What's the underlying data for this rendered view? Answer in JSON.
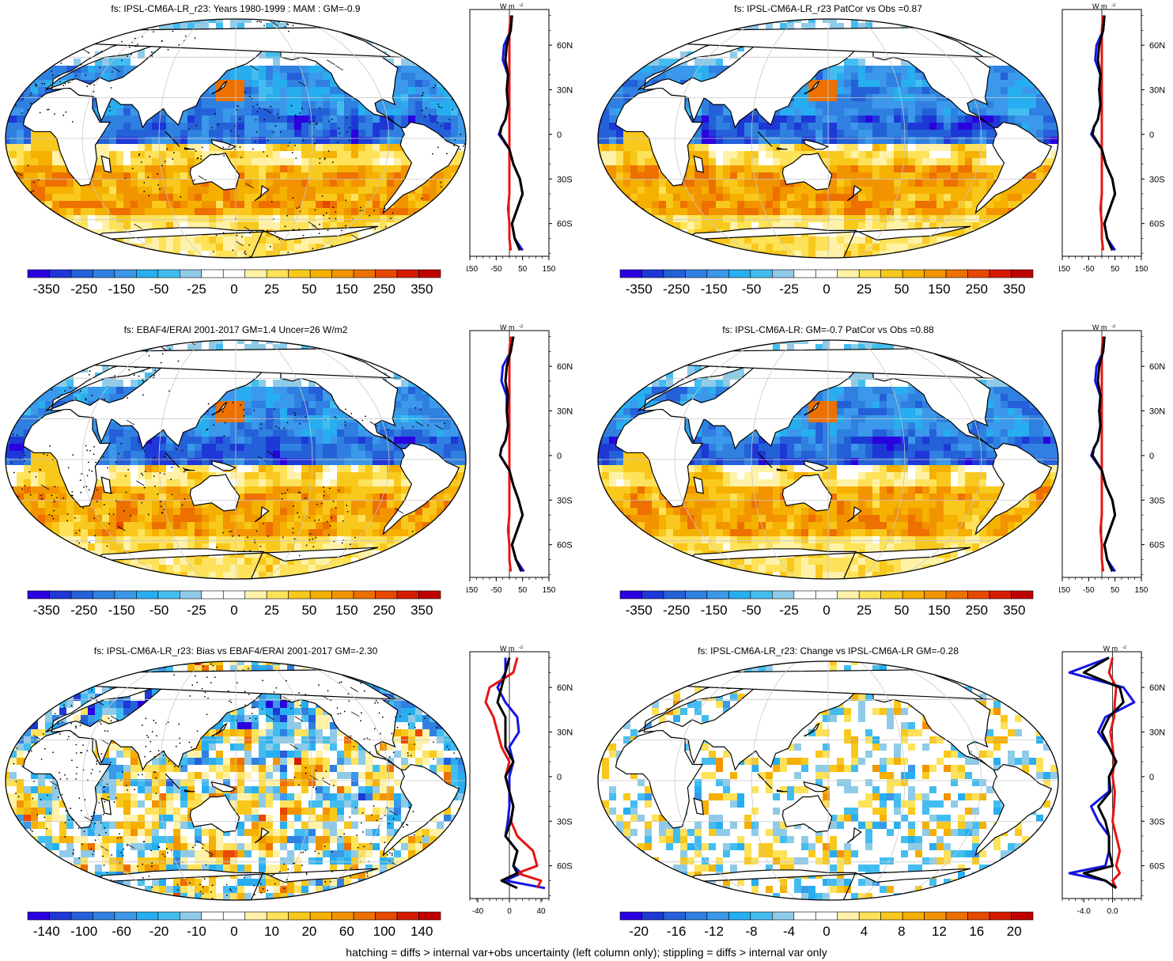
{
  "footer": "hatching = diffs > internal var+obs uncertainty (left column only); stippling = diffs > internal var only",
  "colors": {
    "scale": [
      "#2b00e0",
      "#1d38d6",
      "#2460d8",
      "#2f80e0",
      "#3b98ea",
      "#27aef0",
      "#43bdf0",
      "#8fcbe8",
      "#ffffff",
      "#ffffff",
      "#fff2a8",
      "#fde25a",
      "#f9c81c",
      "#f5b000",
      "#f29400",
      "#ed7000",
      "#e84800",
      "#d61c00",
      "#c00000"
    ],
    "land": "#ffffff",
    "outline": "#000000",
    "line_blue": "#1414e6",
    "line_red": "#e61414",
    "line_black": "#000000"
  },
  "profile_axis": {
    "units": "W m",
    "units_sup": "-2",
    "lat_ticks": [
      "60N",
      "30N",
      "0",
      "30S",
      "60S"
    ]
  },
  "panels": [
    {
      "title": "fs: IPSL-CM6A-LR_r23: Years 1980-1999 : MAM : GM=-0.9",
      "colorbar_labels": [
        "-350",
        "-250",
        "-150",
        "-50",
        "-25",
        "0",
        "25",
        "50",
        "150",
        "250",
        "350"
      ],
      "pattern": "clim",
      "stipple": true,
      "hatch": true,
      "profile_x_ticks": [
        "-150",
        "-50",
        "50",
        "150"
      ],
      "chart_data": {
        "type": "line",
        "x_range": [
          -150,
          150
        ],
        "lat": [
          80,
          70,
          60,
          50,
          40,
          30,
          20,
          10,
          5,
          0,
          -10,
          -20,
          -30,
          -40,
          -50,
          -60,
          -70,
          -78
        ],
        "series": [
          {
            "values": [
              10,
              5,
              -20,
              -25,
              -5,
              -10,
              -5,
              -15,
              -30,
              -40,
              0,
              15,
              40,
              50,
              30,
              10,
              20,
              50
            ]
          },
          {
            "values": [
              5,
              0,
              0,
              0,
              0,
              0,
              0,
              0,
              0,
              0,
              0,
              0,
              0,
              0,
              -5,
              0,
              0,
              5
            ]
          },
          {
            "values": [
              10,
              5,
              -10,
              -15,
              -5,
              -10,
              -5,
              -15,
              -30,
              -35,
              0,
              15,
              40,
              50,
              30,
              10,
              20,
              40
            ]
          }
        ]
      }
    },
    {
      "title": "fs: IPSL-CM6A-LR_r23 PatCor vs Obs =0.87",
      "colorbar_labels": [
        "-350",
        "-250",
        "-150",
        "-50",
        "-25",
        "0",
        "25",
        "50",
        "150",
        "250",
        "350"
      ],
      "pattern": "clim",
      "stipple": false,
      "hatch": false,
      "profile_x_ticks": [
        "-150",
        "-50",
        "50",
        "150"
      ],
      "chart_data": {
        "type": "line",
        "x_range": [
          -150,
          150
        ],
        "lat": [
          80,
          70,
          60,
          50,
          40,
          30,
          20,
          10,
          5,
          0,
          -10,
          -20,
          -30,
          -40,
          -50,
          -60,
          -70,
          -78
        ],
        "series": [
          {
            "values": [
              10,
              5,
              -20,
              -25,
              -5,
              -10,
              -5,
              -15,
              -30,
              -40,
              0,
              15,
              40,
              50,
              30,
              10,
              20,
              50
            ]
          },
          {
            "values": [
              5,
              0,
              0,
              0,
              0,
              0,
              0,
              0,
              0,
              0,
              0,
              0,
              0,
              0,
              -5,
              0,
              0,
              5
            ]
          },
          {
            "values": [
              10,
              5,
              -10,
              -15,
              -5,
              -10,
              -5,
              -15,
              -30,
              -35,
              0,
              15,
              40,
              50,
              30,
              10,
              20,
              40
            ]
          }
        ]
      }
    },
    {
      "title": "fs: EBAF4/ERAI 2001-2017 GM=1.4 Uncer=26 W/m2",
      "colorbar_labels": [
        "-350",
        "-250",
        "-150",
        "-50",
        "-25",
        "0",
        "25",
        "50",
        "150",
        "250",
        "350"
      ],
      "pattern": "clim",
      "stipple": true,
      "hatch": true,
      "profile_x_ticks": [
        "-150",
        "-50",
        "50",
        "150"
      ],
      "chart_data": {
        "type": "line",
        "x_range": [
          -150,
          150
        ],
        "lat": [
          80,
          70,
          60,
          50,
          40,
          30,
          20,
          10,
          5,
          0,
          -10,
          -20,
          -30,
          -40,
          -50,
          -60,
          -70,
          -78
        ],
        "series": [
          {
            "values": [
              15,
              5,
              -25,
              -30,
              -10,
              -10,
              -5,
              -15,
              -30,
              -35,
              0,
              15,
              35,
              50,
              30,
              10,
              25,
              55
            ]
          },
          {
            "values": [
              5,
              0,
              0,
              0,
              0,
              0,
              0,
              0,
              0,
              0,
              0,
              0,
              0,
              0,
              -5,
              0,
              0,
              5
            ]
          },
          {
            "values": [
              15,
              5,
              -10,
              -15,
              -5,
              -10,
              -5,
              -15,
              -30,
              -35,
              0,
              15,
              35,
              50,
              30,
              10,
              25,
              45
            ]
          }
        ]
      }
    },
    {
      "title": "fs: IPSL-CM6A-LR: GM=-0.7 PatCor vs Obs =0.88",
      "colorbar_labels": [
        "-350",
        "-250",
        "-150",
        "-50",
        "-25",
        "0",
        "25",
        "50",
        "150",
        "250",
        "350"
      ],
      "pattern": "clim",
      "stipple": false,
      "hatch": false,
      "profile_x_ticks": [
        "-150",
        "-50",
        "50",
        "150"
      ],
      "chart_data": {
        "type": "line",
        "x_range": [
          -150,
          150
        ],
        "lat": [
          80,
          70,
          60,
          50,
          40,
          30,
          20,
          10,
          5,
          0,
          -10,
          -20,
          -30,
          -40,
          -50,
          -60,
          -70,
          -78
        ],
        "series": [
          {
            "values": [
              10,
              5,
              -20,
              -25,
              -5,
              -10,
              -5,
              -15,
              -30,
              -40,
              0,
              15,
              40,
              50,
              30,
              10,
              20,
              50
            ]
          },
          {
            "values": [
              5,
              0,
              0,
              0,
              0,
              0,
              0,
              0,
              0,
              0,
              0,
              0,
              0,
              0,
              -5,
              0,
              0,
              5
            ]
          },
          {
            "values": [
              10,
              5,
              -10,
              -15,
              -5,
              -10,
              -5,
              -15,
              -30,
              -35,
              0,
              15,
              40,
              50,
              30,
              10,
              20,
              40
            ]
          }
        ]
      }
    },
    {
      "title": "fs: IPSL-CM6A-LR_r23: Bias vs EBAF4/ERAI 2001-2017 GM=-2.30",
      "colorbar_labels": [
        "-140",
        "-100",
        "-60",
        "-20",
        "-10",
        "0",
        "10",
        "20",
        "60",
        "100",
        "140"
      ],
      "pattern": "bias",
      "stipple": true,
      "hatch": true,
      "profile_x_ticks": [
        "-40",
        "0",
        "40"
      ],
      "chart_data": {
        "type": "line",
        "x_range": [
          -50,
          50
        ],
        "lat": [
          80,
          70,
          60,
          50,
          40,
          30,
          20,
          10,
          0,
          -10,
          -20,
          -30,
          -40,
          -50,
          -60,
          -65,
          -70,
          -75
        ],
        "series": [
          {
            "values": [
              -5,
              -5,
              -15,
              -5,
              10,
              12,
              0,
              5,
              0,
              0,
              0,
              -2,
              -5,
              10,
              5,
              15,
              -5,
              45
            ]
          },
          {
            "values": [
              10,
              5,
              -25,
              -30,
              -20,
              -15,
              -10,
              0,
              -5,
              0,
              5,
              2,
              10,
              30,
              35,
              10,
              40,
              35
            ]
          },
          {
            "values": [
              0,
              -5,
              -10,
              -15,
              -5,
              -5,
              -5,
              5,
              -5,
              0,
              5,
              2,
              -5,
              10,
              5,
              10,
              -10,
              10
            ]
          }
        ]
      }
    },
    {
      "title": "fs: IPSL-CM6A-LR_r23: Change vs IPSL-CM6A-LR GM=-0.28",
      "colorbar_labels": [
        "-20",
        "-16",
        "-12",
        "-8",
        "-4",
        "0",
        "4",
        "8",
        "12",
        "16",
        "20"
      ],
      "pattern": "change",
      "stipple": false,
      "hatch": false,
      "profile_x_ticks": [
        "-4.0",
        "0.0"
      ],
      "chart_data": {
        "type": "line",
        "x_range": [
          -7,
          4
        ],
        "lat": [
          80,
          70,
          60,
          50,
          40,
          30,
          20,
          10,
          0,
          -10,
          -20,
          -30,
          -40,
          -50,
          -60,
          -65,
          -70,
          -75
        ],
        "series": [
          {
            "values": [
              -0.5,
              -6,
              1.5,
              3,
              -1,
              -2,
              -0.5,
              0.5,
              -0.5,
              -0.5,
              -3,
              -2,
              -0.5,
              -0.5,
              -1,
              -6,
              -1,
              0.5
            ]
          },
          {
            "values": [
              0,
              -0.5,
              0.5,
              0.3,
              0.2,
              -0.3,
              0,
              0.2,
              0,
              0.3,
              0.2,
              0,
              0.5,
              1,
              0.5,
              1,
              0,
              0.5
            ]
          },
          {
            "values": [
              -0.5,
              -4,
              1,
              1.5,
              -0.5,
              -1.5,
              -0.5,
              0.5,
              -0.5,
              -0.3,
              -2,
              -1,
              -0.5,
              -0.5,
              0,
              -4,
              -1,
              0.5
            ]
          }
        ]
      }
    }
  ]
}
